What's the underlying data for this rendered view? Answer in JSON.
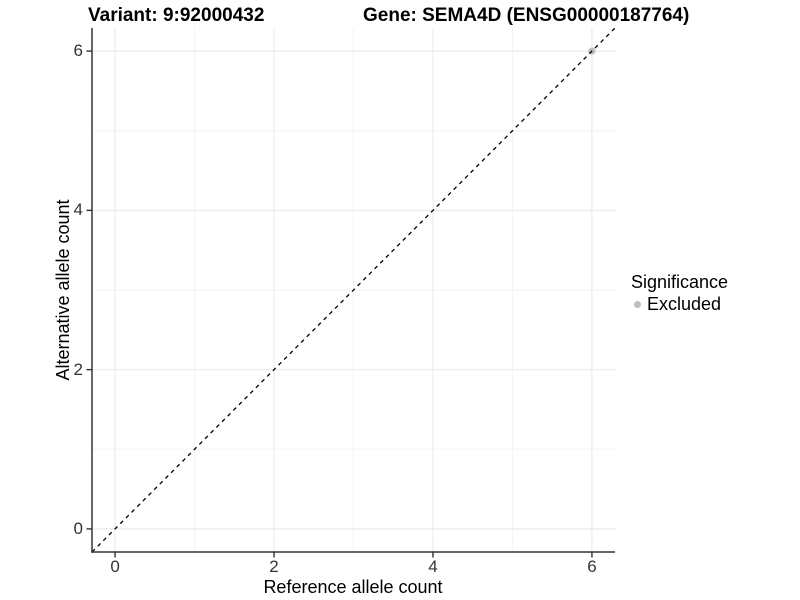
{
  "title": {
    "variant": "Variant: 9:92000432",
    "gene": "Gene: SEMA4D (ENSG00000187764)"
  },
  "x_axis": {
    "label": "Reference allele count",
    "tick_labels": [
      "0",
      "2",
      "4",
      "6"
    ]
  },
  "y_axis": {
    "label": "Alternative allele count",
    "tick_labels": [
      "0",
      "2",
      "4",
      "6"
    ]
  },
  "legend": {
    "title": "Significance",
    "items": [
      {
        "label": "Excluded",
        "color": "#bebebe"
      }
    ]
  },
  "chart_data": {
    "type": "scatter",
    "title": "Variant: 9:92000432   Gene: SEMA4D (ENSG00000187764)",
    "xlabel": "Reference allele count",
    "ylabel": "Alternative allele count",
    "xlim": [
      -0.29,
      6.29
    ],
    "ylim": [
      -0.29,
      6.29
    ],
    "x_ticks": [
      0,
      2,
      4,
      6
    ],
    "y_ticks": [
      0,
      2,
      4,
      6
    ],
    "x_minor_ticks": [
      1,
      3,
      5
    ],
    "y_minor_ticks": [
      1,
      3,
      5
    ],
    "grid": "white panel, light gray major and minor gridlines, left and bottom axis lines only",
    "legend_position": "right-middle",
    "series": [
      {
        "name": "Excluded",
        "type": "scatter",
        "color": "#bebebe",
        "points": [
          [
            6,
            6
          ]
        ]
      }
    ],
    "annotations": [
      {
        "type": "abline",
        "slope": 1,
        "intercept": 0,
        "style": "dashed",
        "color": "#000000",
        "note": "identity line y = x spanning full panel"
      }
    ]
  },
  "colors": {
    "background": "#ffffff",
    "grid_major": "#e8e8e8",
    "grid_minor": "#f4f4f4",
    "axis_line": "#333333",
    "tick_text": "#333333",
    "point": "#bebebe",
    "dashed_line": "#000000"
  }
}
